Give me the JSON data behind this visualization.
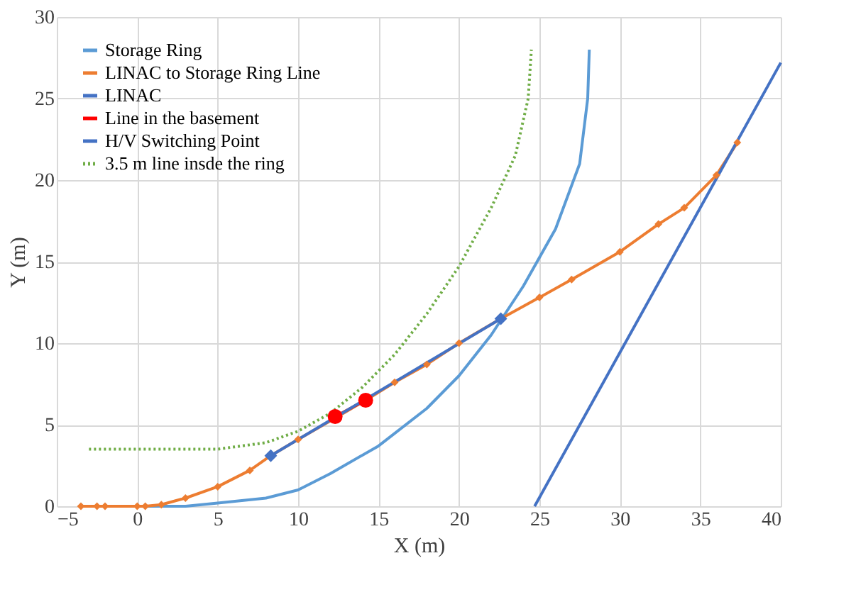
{
  "chart_data": {
    "type": "line",
    "xlabel": "X (m)",
    "ylabel": "Y (m)",
    "xlim": [
      -5,
      40
    ],
    "ylim": [
      0,
      30
    ],
    "xticks": [
      -5,
      0,
      5,
      10,
      15,
      20,
      25,
      30,
      35,
      40
    ],
    "yticks": [
      0,
      5,
      10,
      15,
      20,
      25,
      30
    ],
    "grid": true,
    "legend": "top left",
    "series": [
      {
        "name": "Storage Ring",
        "color": "#5b9bd5",
        "marker": "none",
        "line_style": "solid",
        "x": [
          0,
          3,
          5,
          8,
          10,
          12,
          15,
          18,
          20,
          22,
          24,
          26,
          27.5,
          28,
          28.1
        ],
        "values": [
          0,
          0,
          0.2,
          0.5,
          1,
          2,
          3.7,
          6,
          8,
          10.5,
          13.5,
          17,
          21,
          25,
          28
        ]
      },
      {
        "name": "LINAC to Storage Ring Line",
        "color": "#ed7d31",
        "marker": "diamond",
        "line_style": "solid",
        "x": [
          -3.5,
          -2.5,
          -2,
          0,
          0.5,
          1.5,
          3,
          5,
          7,
          8.3,
          10,
          12.3,
          14.2,
          16,
          18,
          20,
          22.6,
          25,
          27,
          30,
          32.4,
          34,
          36,
          37.3
        ],
        "values": [
          0,
          0,
          0,
          0,
          0,
          0.1,
          0.5,
          1.2,
          2.2,
          3.1,
          4.1,
          5.4,
          6.5,
          7.6,
          8.7,
          10,
          11.5,
          12.8,
          13.9,
          15.6,
          17.3,
          18.3,
          20.3,
          22.3
        ]
      },
      {
        "name": "LINAC",
        "color": "#4472c4",
        "marker": "none",
        "line_style": "solid",
        "x": [
          24.7,
          40
        ],
        "values": [
          0,
          27.2
        ]
      },
      {
        "name": "Line in the basement",
        "color": "#ff0000",
        "marker": "circle",
        "line_style": "solid",
        "x": [
          12.3,
          14.2
        ],
        "values": [
          5.5,
          6.5
        ]
      },
      {
        "name": "H/V Switching Point",
        "color": "#4472c4",
        "marker": "diamond",
        "line_style": "solid",
        "x": [
          8.3,
          22.6
        ],
        "values": [
          3.1,
          11.5
        ]
      },
      {
        "name": "3.5 m line insde the ring",
        "color": "#70ad47",
        "marker": "none",
        "line_style": "dotted",
        "x": [
          -3,
          5,
          8,
          10,
          12,
          14,
          16,
          18,
          20,
          22,
          23.5,
          24.3,
          24.5
        ],
        "values": [
          3.5,
          3.5,
          3.9,
          4.6,
          5.7,
          7.3,
          9.3,
          11.8,
          14.7,
          18.3,
          21.5,
          25,
          28
        ]
      }
    ]
  }
}
